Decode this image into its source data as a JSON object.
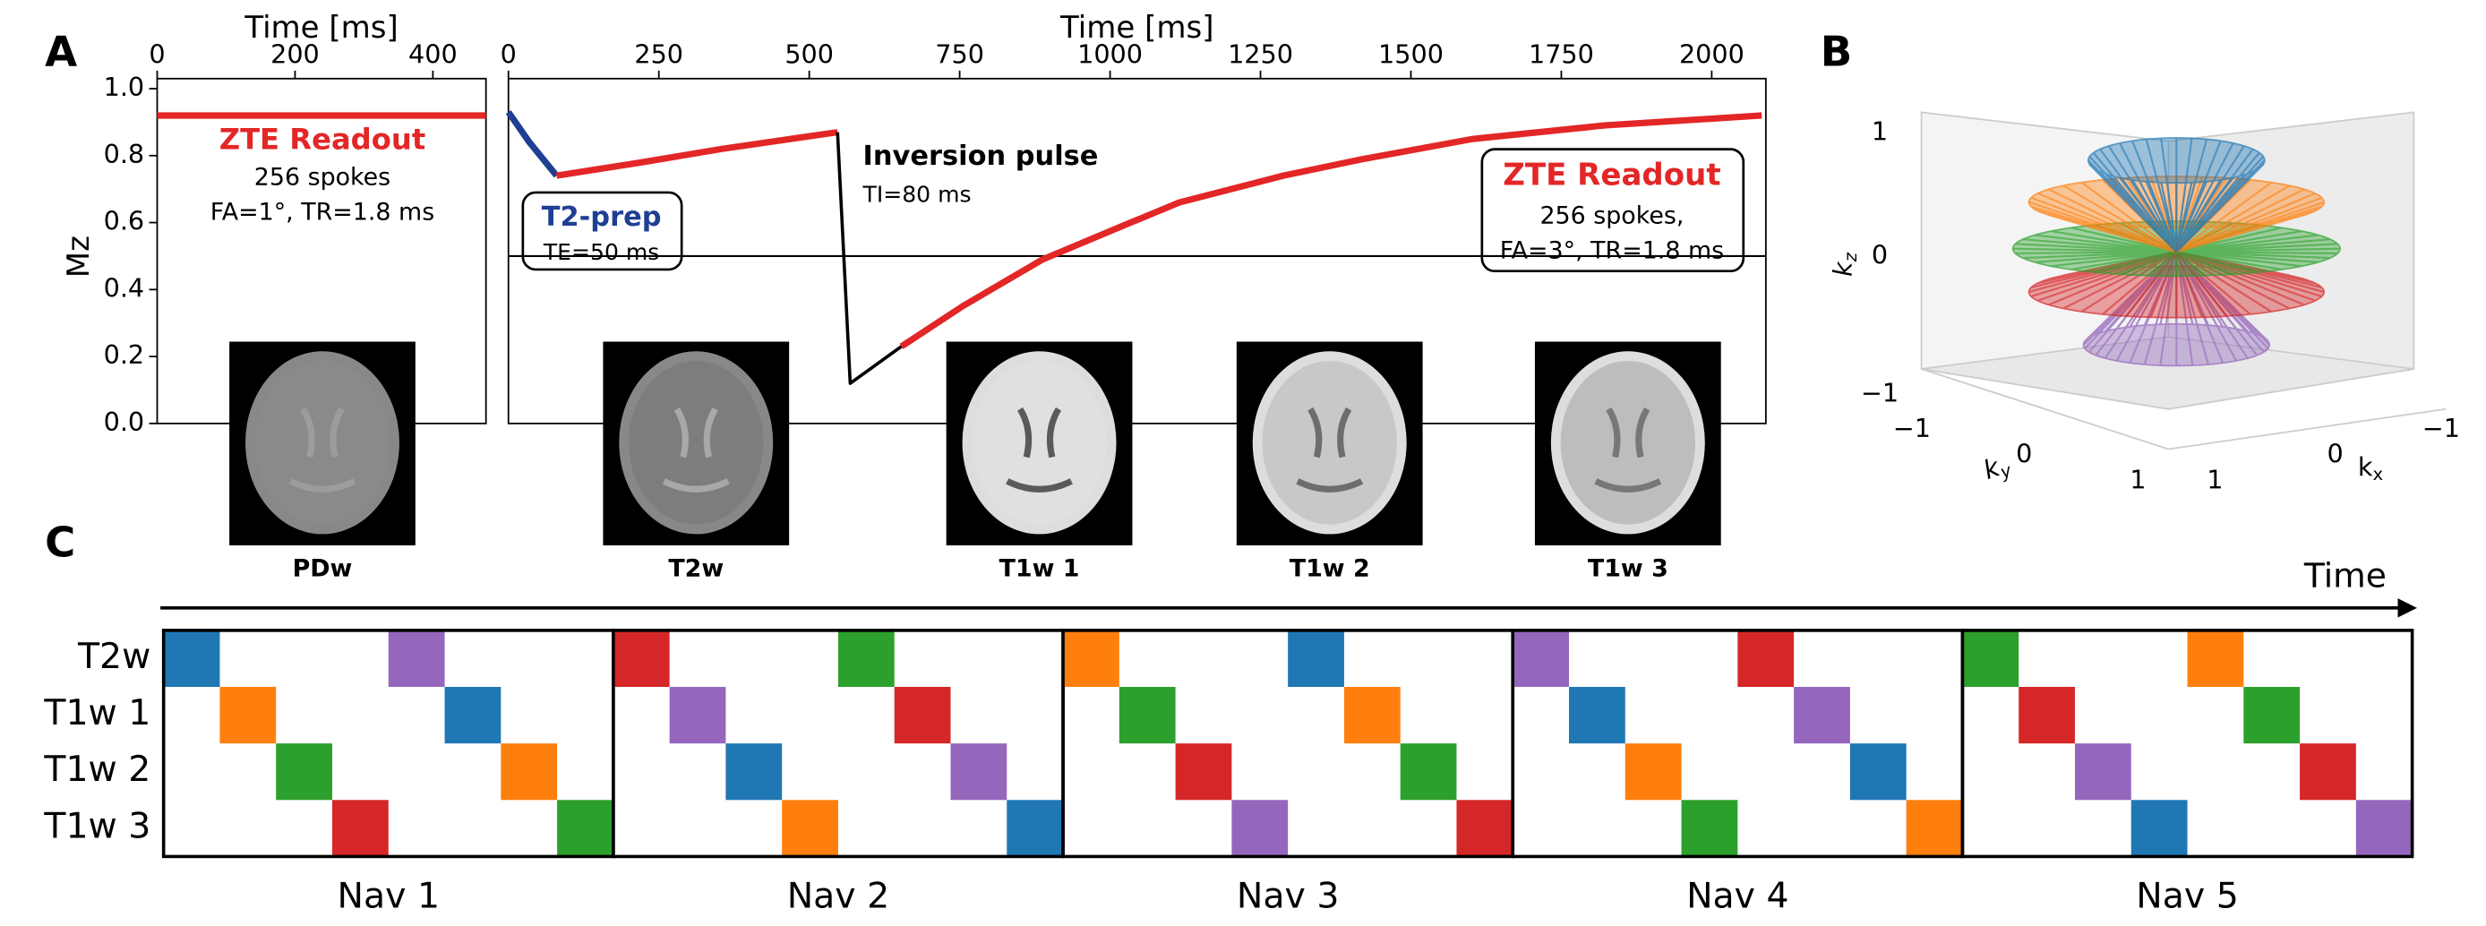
{
  "panel_labels": [
    "A",
    "B",
    "C"
  ],
  "chart_data": [
    {
      "type": "line",
      "xlabel": "Time [ms]",
      "ylabel": "Mz",
      "x": [
        0,
        477
      ],
      "series": [
        {
          "color": "#e32626",
          "values": [
            0.92,
            0.92
          ]
        }
      ],
      "xlim": [
        0,
        477
      ],
      "xticks": [
        0,
        200,
        400
      ],
      "ylim": [
        0,
        1.03
      ],
      "yticks": [
        {
          "value": 0,
          "label": "0.0"
        },
        0.2,
        0.4,
        0.6,
        0.8,
        {
          "value": 1,
          "label": "1.0"
        }
      ],
      "annotations": [
        "ZTE Readout",
        "256 spokes",
        "FA=1°, TR=1.8 ms"
      ]
    },
    {
      "type": "line",
      "xlabel": "Time [ms]",
      "x": [
        0,
        35,
        80,
        221,
        355,
        547,
        568,
        653,
        755,
        888,
        1021,
        1115,
        1288,
        1421,
        1603,
        1821,
        2083
      ],
      "series": [
        {
          "color": "#1f3f93",
          "values": [
            0.93,
            0.84,
            0.74,
            null,
            null,
            null,
            null,
            null,
            null,
            null,
            null,
            null,
            null,
            null,
            null,
            null,
            null
          ]
        },
        {
          "color": "#e32626",
          "values": [
            null,
            null,
            0.74,
            0.78,
            0.82,
            0.87,
            null,
            0.23,
            0.35,
            0.49,
            0.59,
            0.66,
            0.74,
            0.79,
            0.85,
            0.89,
            0.92
          ]
        },
        {
          "color": "#000000",
          "values": [
            null,
            null,
            null,
            null,
            null,
            0.87,
            0.12,
            0.23,
            null,
            null,
            null,
            null,
            null,
            null,
            null,
            null,
            null
          ]
        }
      ],
      "xlim": [
        0,
        2090
      ],
      "xticks": [
        0,
        250,
        500,
        750,
        1000,
        1250,
        1500,
        1750,
        2000
      ],
      "ylim": [
        0,
        1.03
      ],
      "hline": 0.5,
      "annotations": [
        "T2-prep",
        "TE=50 ms",
        "Inversion pulse",
        "TI=80 ms",
        "ZTE Readout",
        "256 spokes,",
        "FA=3°, TR=1.8 ms"
      ]
    }
  ],
  "images": [
    {
      "label": "PDw"
    },
    {
      "label": "T2w"
    },
    {
      "label": "T1w 1"
    },
    {
      "label": "T1w 2"
    },
    {
      "label": "T1w 3"
    }
  ],
  "panel_b": {
    "kz": "k",
    "kz_sub": "z",
    "ky": "k",
    "ky_sub": "y",
    "kx": "k",
    "kx_sub": "x",
    "kz_ticks": [
      "1",
      "0",
      "−1"
    ],
    "ky_ticks": [
      "−1",
      "0",
      "1"
    ],
    "kx_ticks": [
      "1",
      "0",
      "−1"
    ]
  },
  "panel_c": {
    "time_label": "Time",
    "rows": [
      "T2w",
      "T1w 1",
      "T1w 2",
      "T1w 3"
    ],
    "navs": [
      {
        "name": "Nav 1",
        "colors": [
          "#1f77b4",
          "#ff7f0e",
          "#2ca02c",
          "#d62728",
          "#9467bd",
          "#1f77b4",
          "#ff7f0e",
          "#2ca02c"
        ]
      },
      {
        "name": "Nav 2",
        "colors": [
          "#d62728",
          "#9467bd",
          "#1f77b4",
          "#ff7f0e",
          "#2ca02c",
          "#d62728",
          "#9467bd",
          "#1f77b4"
        ]
      },
      {
        "name": "Nav 3",
        "colors": [
          "#ff7f0e",
          "#2ca02c",
          "#d62728",
          "#9467bd",
          "#1f77b4",
          "#ff7f0e",
          "#2ca02c",
          "#d62728"
        ]
      },
      {
        "name": "Nav 4",
        "colors": [
          "#9467bd",
          "#1f77b4",
          "#ff7f0e",
          "#2ca02c",
          "#d62728",
          "#9467bd",
          "#1f77b4",
          "#ff7f0e"
        ]
      },
      {
        "name": "Nav 5",
        "colors": [
          "#2ca02c",
          "#d62728",
          "#9467bd",
          "#1f77b4",
          "#ff7f0e",
          "#2ca02c",
          "#d62728",
          "#9467bd"
        ]
      }
    ]
  }
}
